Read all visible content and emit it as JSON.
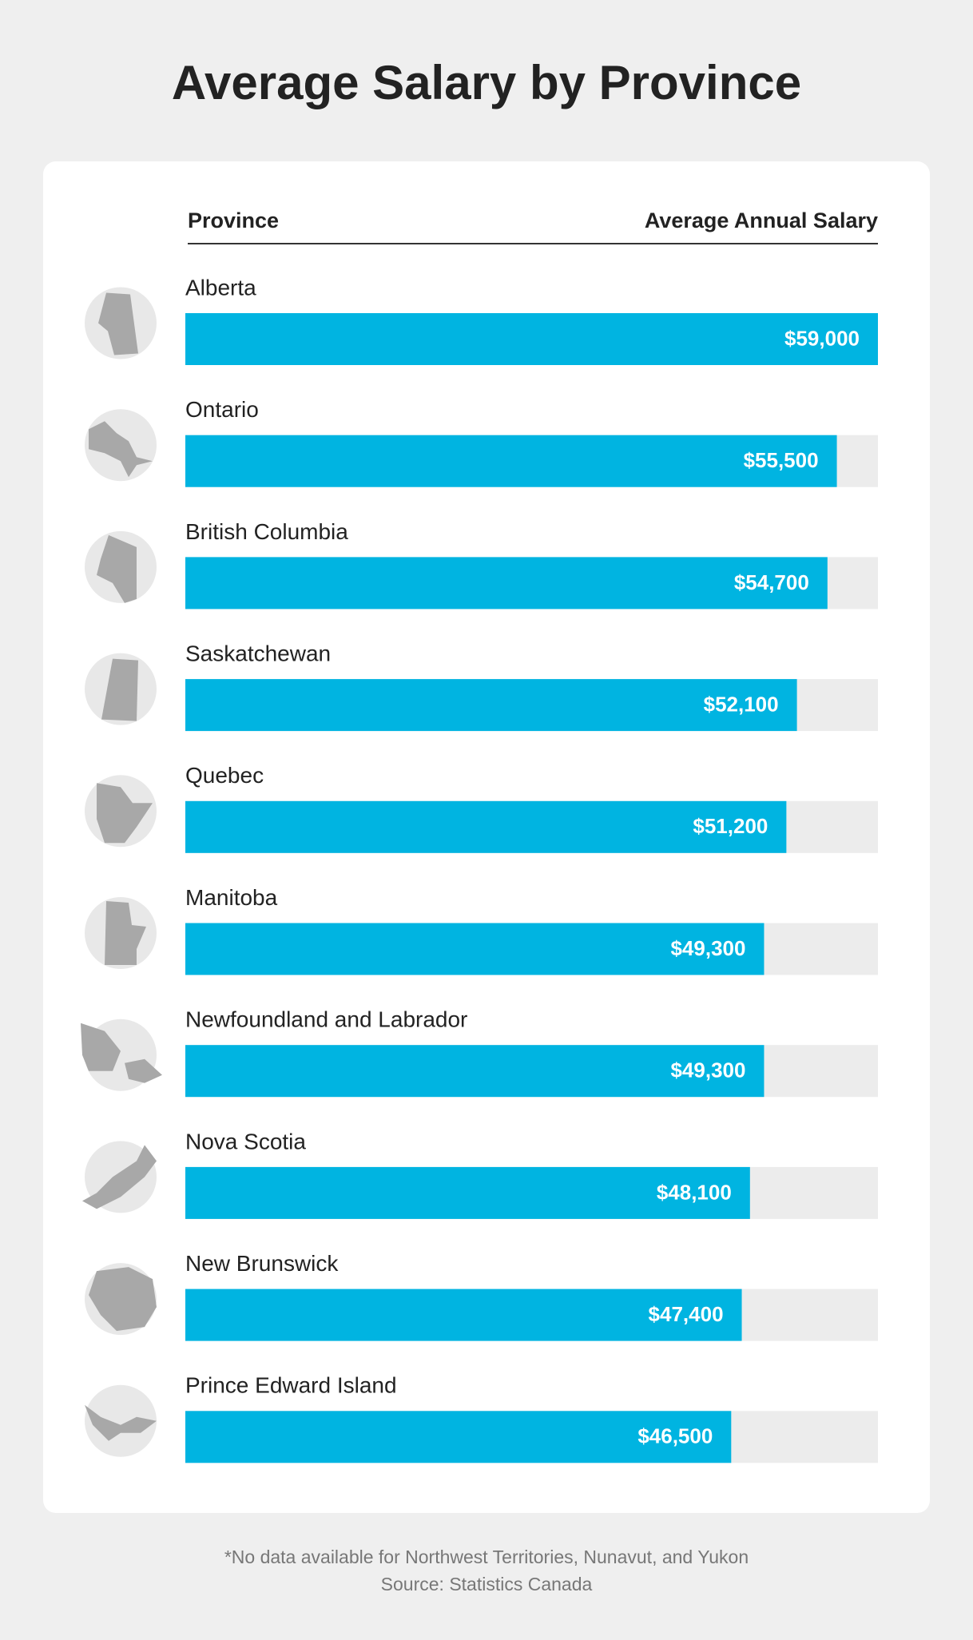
{
  "chart_data": {
    "type": "bar",
    "title": "Average Salary by Province",
    "column_headers": [
      "Province",
      "Average Annual Salary"
    ],
    "categories": [
      "Alberta",
      "Ontario",
      "British Columbia",
      "Saskatchewan",
      "Quebec",
      "Manitoba",
      "Newfoundland and Labrador",
      "Nova Scotia",
      "New Brunswick",
      "Prince Edward Island"
    ],
    "values": [
      59000,
      55500,
      54700,
      52100,
      51200,
      49300,
      49300,
      48100,
      47400,
      46500
    ],
    "value_labels": [
      "$59,000",
      "$55,500",
      "$54,700",
      "$52,100",
      "$51,200",
      "$49,300",
      "$49,300",
      "$48,100",
      "$47,400",
      "$46,500"
    ],
    "color": "#00b4e1",
    "track_color": "#ececec",
    "xlim": [
      0,
      59000
    ],
    "footnote": "*No data available for Northwest Territories, Nunavut, and Yukon",
    "source": "Source: Statistics Canada"
  }
}
